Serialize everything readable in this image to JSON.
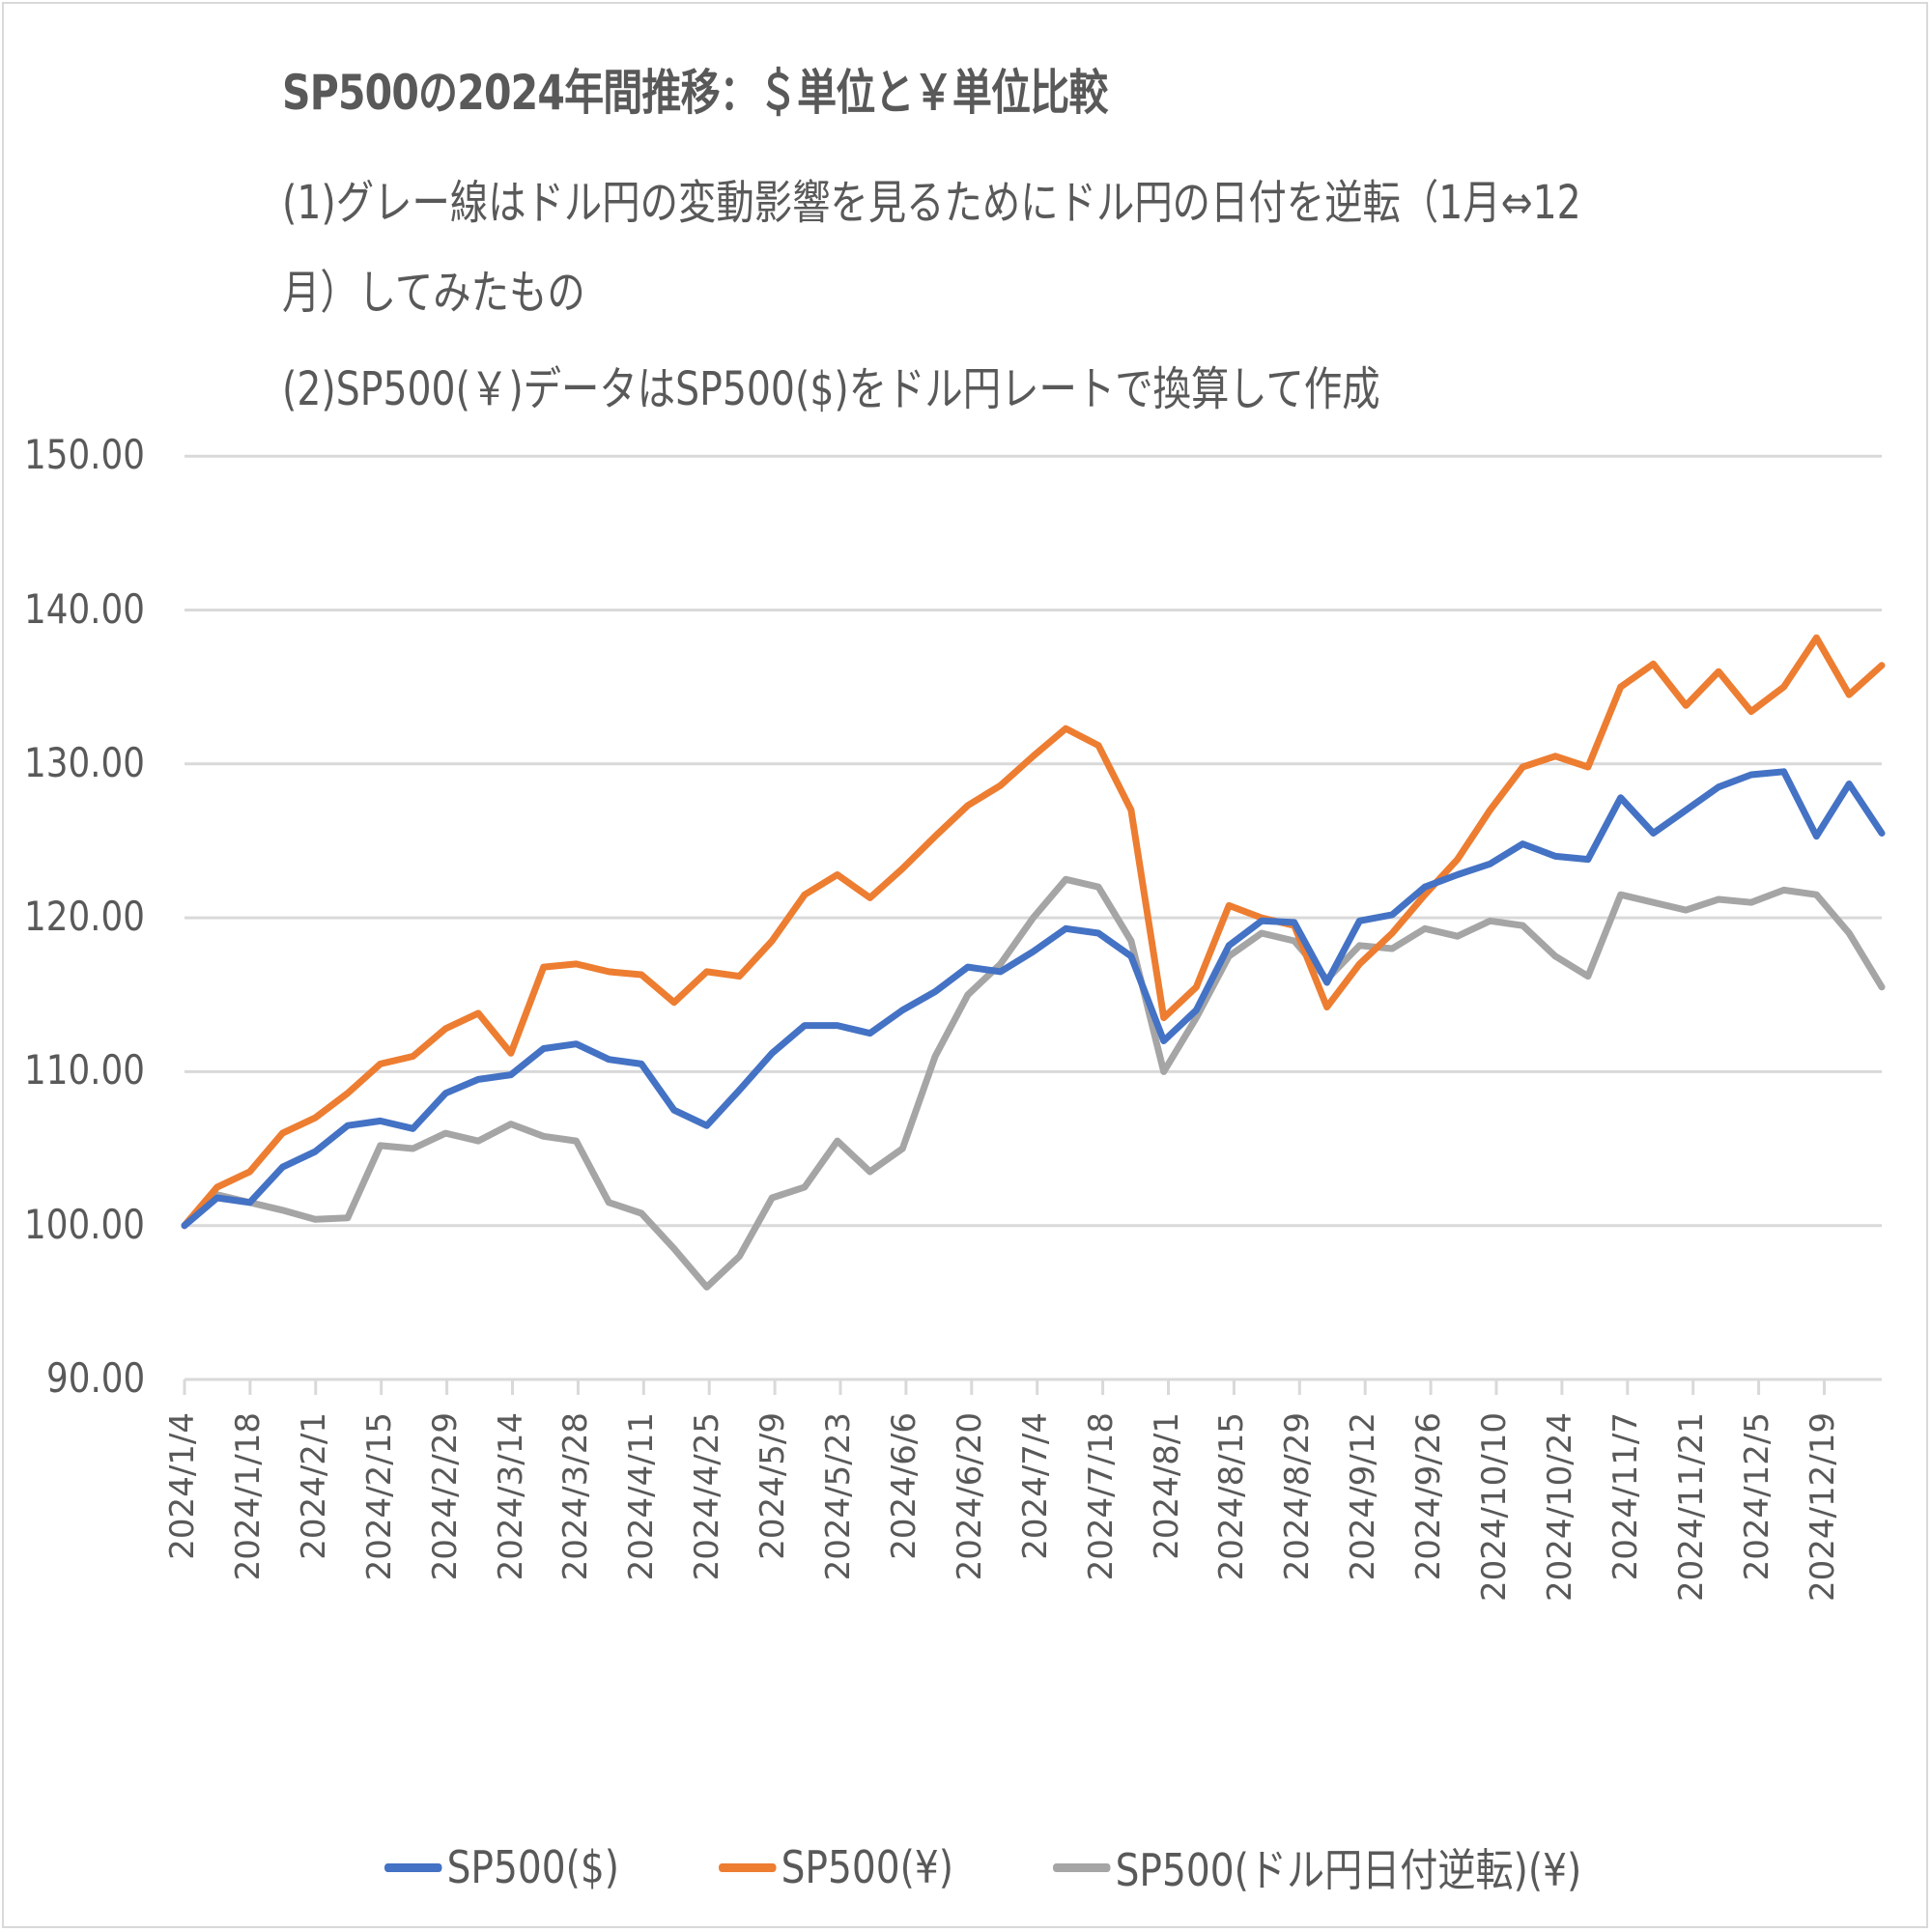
{
  "chart": {
    "title": "SP500の2024年間推移：＄単位と￥単位比較",
    "notes": [
      "(1)グレー線はドル円の変動影響を見るためにドル円の日付を逆転（1月⇔12",
      "月）してみたもの",
      "(2)SP500(￥)データはSP500($)をドル円レートで換算して作成"
    ],
    "y_ticks": [
      "150.00",
      "140.00",
      "130.00",
      "120.00",
      "110.00",
      "100.00",
      "90.00"
    ],
    "x_ticks": [
      "2024/1/4",
      "2024/1/18",
      "2024/2/1",
      "2024/2/15",
      "2024/2/29",
      "2024/3/14",
      "2024/3/28",
      "2024/4/11",
      "2024/4/25",
      "2024/5/9",
      "2024/5/23",
      "2024/6/6",
      "2024/6/20",
      "2024/7/4",
      "2024/7/18",
      "2024/8/1",
      "2024/8/15",
      "2024/8/29",
      "2024/9/12",
      "2024/9/26",
      "2024/10/10",
      "2024/10/24",
      "2024/11/7",
      "2024/11/21",
      "2024/12/5",
      "2024/12/19"
    ],
    "legend": [
      {
        "label": "SP500($)",
        "color": "#4472C4"
      },
      {
        "label": "SP500(¥)",
        "color": "#ED7D31"
      },
      {
        "label": "SP500(ドル円日付逆転)(¥)",
        "color": "#A5A5A5"
      }
    ]
  },
  "chart_data": {
    "type": "line",
    "title": "SP500の2024年間推移：＄単位と￥単位比較",
    "xlabel": "",
    "ylabel": "",
    "ylim": [
      90,
      150
    ],
    "grid": true,
    "legend_position": "bottom",
    "x": [
      "2024/1/4",
      "2024/1/11",
      "2024/1/18",
      "2024/1/25",
      "2024/2/1",
      "2024/2/8",
      "2024/2/15",
      "2024/2/22",
      "2024/2/29",
      "2024/3/7",
      "2024/3/14",
      "2024/3/21",
      "2024/3/28",
      "2024/4/4",
      "2024/4/11",
      "2024/4/18",
      "2024/4/25",
      "2024/5/2",
      "2024/5/9",
      "2024/5/16",
      "2024/5/23",
      "2024/5/30",
      "2024/6/6",
      "2024/6/13",
      "2024/6/20",
      "2024/6/27",
      "2024/7/4",
      "2024/7/11",
      "2024/7/18",
      "2024/7/25",
      "2024/8/1",
      "2024/8/8",
      "2024/8/15",
      "2024/8/22",
      "2024/8/29",
      "2024/9/5",
      "2024/9/12",
      "2024/9/19",
      "2024/9/26",
      "2024/10/3",
      "2024/10/10",
      "2024/10/17",
      "2024/10/24",
      "2024/10/31",
      "2024/11/7",
      "2024/11/14",
      "2024/11/21",
      "2024/11/28",
      "2024/12/5",
      "2024/12/12",
      "2024/12/19",
      "2024/12/26",
      "2024/12/31"
    ],
    "series": [
      {
        "name": "SP500($)",
        "color": "#4472C4",
        "values": [
          100.0,
          101.8,
          101.5,
          103.8,
          104.8,
          106.5,
          106.8,
          106.3,
          108.6,
          109.5,
          109.8,
          111.5,
          111.8,
          110.8,
          110.5,
          107.5,
          106.5,
          108.8,
          111.2,
          113.0,
          113.0,
          112.5,
          114.0,
          115.2,
          116.8,
          116.5,
          117.8,
          119.3,
          119.0,
          117.5,
          112.0,
          114.0,
          118.2,
          119.8,
          119.7,
          115.8,
          119.8,
          120.2,
          122.0,
          122.8,
          123.5,
          124.8,
          124.0,
          123.8,
          127.8,
          125.5,
          127.0,
          128.5,
          129.3,
          129.5,
          125.3,
          128.7,
          125.5
        ]
      },
      {
        "name": "SP500(¥)",
        "color": "#ED7D31",
        "values": [
          100.0,
          102.5,
          103.5,
          106.0,
          107.0,
          108.6,
          110.5,
          111.0,
          112.8,
          113.8,
          111.2,
          116.8,
          117.0,
          116.5,
          116.3,
          114.5,
          116.5,
          116.2,
          118.5,
          121.5,
          122.8,
          121.3,
          123.2,
          125.3,
          127.3,
          128.6,
          130.5,
          132.3,
          131.2,
          127.0,
          113.5,
          115.5,
          120.8,
          120.0,
          119.5,
          114.2,
          117.0,
          119.0,
          121.5,
          123.8,
          127.0,
          129.8,
          130.5,
          129.8,
          135.0,
          136.5,
          133.8,
          136.0,
          133.4,
          135.0,
          138.2,
          134.5,
          136.4
        ]
      },
      {
        "name": "SP500(ドル円日付逆転)(¥)",
        "color": "#A5A5A5",
        "values": [
          100.0,
          102.0,
          101.5,
          101.0,
          100.4,
          100.5,
          105.2,
          105.0,
          106.0,
          105.5,
          106.6,
          105.8,
          105.5,
          101.5,
          100.8,
          98.5,
          96.0,
          98.0,
          101.8,
          102.5,
          105.5,
          103.5,
          105.0,
          111.0,
          115.0,
          117.0,
          120.0,
          122.5,
          122.0,
          118.5,
          110.0,
          113.5,
          117.5,
          119.0,
          118.5,
          116.0,
          118.2,
          118.0,
          119.3,
          118.8,
          119.8,
          119.5,
          117.5,
          116.2,
          121.5,
          121.0,
          120.5,
          121.2,
          121.0,
          121.8,
          121.5,
          119.0,
          115.5
        ]
      }
    ]
  }
}
